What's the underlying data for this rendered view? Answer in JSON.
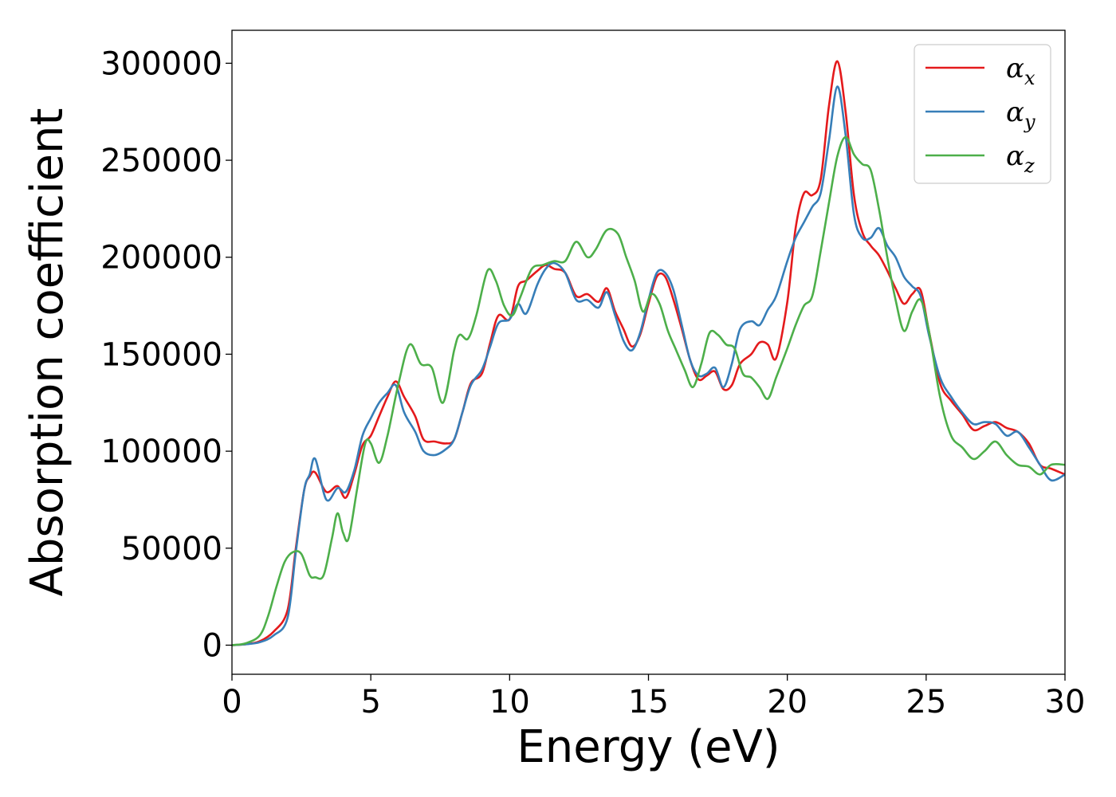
{
  "chart_data": {
    "type": "line",
    "title": "",
    "xlabel": "Energy (eV)",
    "ylabel": "Absorption coefficient",
    "xlim": [
      0,
      30
    ],
    "ylim": [
      -15000,
      317000
    ],
    "xticks": [
      0,
      5,
      10,
      15,
      20,
      25,
      30
    ],
    "yticks": [
      0,
      50000,
      100000,
      150000,
      200000,
      250000,
      300000
    ],
    "grid": false,
    "legend_position": "top-right",
    "series": [
      {
        "name": "α_x",
        "legend_base": "α",
        "legend_sub": "x",
        "color": "#e41a1c",
        "points": [
          [
            0,
            0
          ],
          [
            0.5,
            500
          ],
          [
            1.0,
            2000
          ],
          [
            1.5,
            7000
          ],
          [
            2.0,
            18000
          ],
          [
            2.3,
            50000
          ],
          [
            2.6,
            80000
          ],
          [
            2.8,
            87000
          ],
          [
            3.0,
            89000
          ],
          [
            3.4,
            79000
          ],
          [
            3.8,
            82000
          ],
          [
            4.1,
            76000
          ],
          [
            4.4,
            88000
          ],
          [
            4.7,
            103000
          ],
          [
            5.0,
            108000
          ],
          [
            5.3,
            118000
          ],
          [
            5.6,
            128000
          ],
          [
            5.9,
            136000
          ],
          [
            6.2,
            128000
          ],
          [
            6.6,
            118000
          ],
          [
            6.9,
            106000
          ],
          [
            7.3,
            105000
          ],
          [
            7.7,
            104000
          ],
          [
            8.0,
            106000
          ],
          [
            8.3,
            120000
          ],
          [
            8.6,
            135000
          ],
          [
            9.0,
            140000
          ],
          [
            9.3,
            156000
          ],
          [
            9.6,
            170000
          ],
          [
            10.0,
            168000
          ],
          [
            10.3,
            185000
          ],
          [
            10.6,
            188000
          ],
          [
            11.0,
            193000
          ],
          [
            11.3,
            196000
          ],
          [
            11.6,
            194000
          ],
          [
            12.0,
            192000
          ],
          [
            12.4,
            180000
          ],
          [
            12.8,
            181000
          ],
          [
            13.2,
            177000
          ],
          [
            13.5,
            184000
          ],
          [
            13.8,
            172000
          ],
          [
            14.1,
            163000
          ],
          [
            14.4,
            154000
          ],
          [
            14.7,
            160000
          ],
          [
            15.0,
            176000
          ],
          [
            15.3,
            190000
          ],
          [
            15.6,
            190000
          ],
          [
            15.9,
            178000
          ],
          [
            16.2,
            163000
          ],
          [
            16.5,
            147000
          ],
          [
            16.8,
            137000
          ],
          [
            17.1,
            139000
          ],
          [
            17.4,
            141000
          ],
          [
            17.7,
            132000
          ],
          [
            18.0,
            134000
          ],
          [
            18.3,
            145000
          ],
          [
            18.7,
            150000
          ],
          [
            19.0,
            156000
          ],
          [
            19.3,
            155000
          ],
          [
            19.6,
            148000
          ],
          [
            20.0,
            177000
          ],
          [
            20.3,
            215000
          ],
          [
            20.6,
            233000
          ],
          [
            20.9,
            232000
          ],
          [
            21.2,
            240000
          ],
          [
            21.5,
            278000
          ],
          [
            21.8,
            301000
          ],
          [
            22.1,
            275000
          ],
          [
            22.4,
            232000
          ],
          [
            22.7,
            213000
          ],
          [
            23.0,
            206000
          ],
          [
            23.3,
            201000
          ],
          [
            23.6,
            193000
          ],
          [
            23.9,
            184000
          ],
          [
            24.2,
            176000
          ],
          [
            24.5,
            181000
          ],
          [
            24.8,
            183000
          ],
          [
            25.1,
            162000
          ],
          [
            25.5,
            135000
          ],
          [
            25.9,
            126000
          ],
          [
            26.3,
            119000
          ],
          [
            26.7,
            111000
          ],
          [
            27.1,
            113000
          ],
          [
            27.5,
            115000
          ],
          [
            27.9,
            112000
          ],
          [
            28.3,
            110000
          ],
          [
            28.7,
            104000
          ],
          [
            29.1,
            93000
          ],
          [
            29.5,
            91000
          ],
          [
            30.0,
            88000
          ]
        ]
      },
      {
        "name": "α_y",
        "legend_base": "α",
        "legend_sub": "y",
        "color": "#377eb8",
        "points": [
          [
            0,
            0
          ],
          [
            0.5,
            500
          ],
          [
            1.0,
            1500
          ],
          [
            1.5,
            5000
          ],
          [
            2.0,
            14000
          ],
          [
            2.3,
            48000
          ],
          [
            2.6,
            80000
          ],
          [
            2.8,
            88000
          ],
          [
            3.0,
            96000
          ],
          [
            3.4,
            75000
          ],
          [
            3.8,
            81000
          ],
          [
            4.1,
            79000
          ],
          [
            4.4,
            90000
          ],
          [
            4.7,
            108000
          ],
          [
            5.0,
            117000
          ],
          [
            5.3,
            125000
          ],
          [
            5.6,
            130000
          ],
          [
            5.9,
            134000
          ],
          [
            6.2,
            120000
          ],
          [
            6.6,
            110000
          ],
          [
            6.9,
            100000
          ],
          [
            7.3,
            98000
          ],
          [
            7.7,
            101000
          ],
          [
            8.0,
            106000
          ],
          [
            8.3,
            120000
          ],
          [
            8.6,
            134000
          ],
          [
            9.0,
            142000
          ],
          [
            9.3,
            154000
          ],
          [
            9.6,
            166000
          ],
          [
            10.0,
            168000
          ],
          [
            10.3,
            176000
          ],
          [
            10.6,
            171000
          ],
          [
            11.0,
            186000
          ],
          [
            11.3,
            194000
          ],
          [
            11.6,
            197000
          ],
          [
            12.0,
            192000
          ],
          [
            12.4,
            178000
          ],
          [
            12.8,
            178000
          ],
          [
            13.2,
            174000
          ],
          [
            13.5,
            182000
          ],
          [
            13.8,
            170000
          ],
          [
            14.1,
            157000
          ],
          [
            14.4,
            152000
          ],
          [
            14.7,
            161000
          ],
          [
            15.0,
            178000
          ],
          [
            15.3,
            192000
          ],
          [
            15.6,
            192000
          ],
          [
            15.9,
            183000
          ],
          [
            16.2,
            165000
          ],
          [
            16.5,
            147000
          ],
          [
            16.8,
            139000
          ],
          [
            17.1,
            140000
          ],
          [
            17.4,
            143000
          ],
          [
            17.7,
            133000
          ],
          [
            18.0,
            145000
          ],
          [
            18.3,
            163000
          ],
          [
            18.7,
            167000
          ],
          [
            19.0,
            165000
          ],
          [
            19.3,
            173000
          ],
          [
            19.6,
            180000
          ],
          [
            20.0,
            198000
          ],
          [
            20.3,
            210000
          ],
          [
            20.6,
            218000
          ],
          [
            20.9,
            226000
          ],
          [
            21.2,
            233000
          ],
          [
            21.5,
            260000
          ],
          [
            21.8,
            288000
          ],
          [
            22.1,
            263000
          ],
          [
            22.4,
            222000
          ],
          [
            22.7,
            210000
          ],
          [
            23.0,
            210000
          ],
          [
            23.3,
            215000
          ],
          [
            23.6,
            206000
          ],
          [
            23.9,
            200000
          ],
          [
            24.2,
            190000
          ],
          [
            24.5,
            185000
          ],
          [
            24.8,
            180000
          ],
          [
            25.1,
            160000
          ],
          [
            25.5,
            138000
          ],
          [
            25.9,
            128000
          ],
          [
            26.3,
            120000
          ],
          [
            26.7,
            114000
          ],
          [
            27.1,
            115000
          ],
          [
            27.5,
            114000
          ],
          [
            27.9,
            108000
          ],
          [
            28.3,
            110000
          ],
          [
            28.7,
            102000
          ],
          [
            29.1,
            93000
          ],
          [
            29.5,
            85000
          ],
          [
            30.0,
            88000
          ]
        ]
      },
      {
        "name": "α_z",
        "legend_base": "α",
        "legend_sub": "z",
        "color": "#4daf4a",
        "points": [
          [
            0,
            0
          ],
          [
            0.5,
            1000
          ],
          [
            1.0,
            5000
          ],
          [
            1.3,
            15000
          ],
          [
            1.6,
            30000
          ],
          [
            1.9,
            43000
          ],
          [
            2.2,
            48000
          ],
          [
            2.5,
            47000
          ],
          [
            2.8,
            36000
          ],
          [
            3.0,
            35000
          ],
          [
            3.3,
            36000
          ],
          [
            3.6,
            55000
          ],
          [
            3.8,
            68000
          ],
          [
            4.0,
            58000
          ],
          [
            4.2,
            55000
          ],
          [
            4.5,
            80000
          ],
          [
            4.8,
            104000
          ],
          [
            5.0,
            104000
          ],
          [
            5.3,
            94000
          ],
          [
            5.6,
            108000
          ],
          [
            6.0,
            135000
          ],
          [
            6.4,
            155000
          ],
          [
            6.8,
            145000
          ],
          [
            7.2,
            143000
          ],
          [
            7.6,
            125000
          ],
          [
            8.0,
            152000
          ],
          [
            8.2,
            160000
          ],
          [
            8.5,
            158000
          ],
          [
            8.8,
            170000
          ],
          [
            9.2,
            193000
          ],
          [
            9.5,
            188000
          ],
          [
            9.8,
            175000
          ],
          [
            10.1,
            170000
          ],
          [
            10.4,
            180000
          ],
          [
            10.8,
            194000
          ],
          [
            11.2,
            196000
          ],
          [
            11.6,
            198000
          ],
          [
            12.0,
            198000
          ],
          [
            12.4,
            208000
          ],
          [
            12.8,
            200000
          ],
          [
            13.1,
            204000
          ],
          [
            13.5,
            214000
          ],
          [
            13.9,
            212000
          ],
          [
            14.2,
            200000
          ],
          [
            14.5,
            188000
          ],
          [
            14.8,
            172000
          ],
          [
            15.1,
            181000
          ],
          [
            15.4,
            176000
          ],
          [
            15.7,
            162000
          ],
          [
            16.0,
            152000
          ],
          [
            16.3,
            142000
          ],
          [
            16.6,
            133000
          ],
          [
            16.9,
            145000
          ],
          [
            17.2,
            161000
          ],
          [
            17.5,
            160000
          ],
          [
            17.8,
            155000
          ],
          [
            18.1,
            153000
          ],
          [
            18.4,
            140000
          ],
          [
            18.7,
            138000
          ],
          [
            19.0,
            133000
          ],
          [
            19.3,
            127000
          ],
          [
            19.6,
            138000
          ],
          [
            20.0,
            153000
          ],
          [
            20.3,
            165000
          ],
          [
            20.6,
            175000
          ],
          [
            20.9,
            180000
          ],
          [
            21.2,
            203000
          ],
          [
            21.5,
            228000
          ],
          [
            21.8,
            252000
          ],
          [
            22.1,
            262000
          ],
          [
            22.4,
            253000
          ],
          [
            22.7,
            248000
          ],
          [
            23.0,
            245000
          ],
          [
            23.3,
            225000
          ],
          [
            23.6,
            200000
          ],
          [
            23.9,
            178000
          ],
          [
            24.2,
            162000
          ],
          [
            24.5,
            172000
          ],
          [
            24.8,
            178000
          ],
          [
            25.1,
            162000
          ],
          [
            25.5,
            128000
          ],
          [
            25.9,
            108000
          ],
          [
            26.3,
            102000
          ],
          [
            26.7,
            96000
          ],
          [
            27.1,
            100000
          ],
          [
            27.5,
            105000
          ],
          [
            27.9,
            98000
          ],
          [
            28.3,
            93000
          ],
          [
            28.7,
            92000
          ],
          [
            29.1,
            88000
          ],
          [
            29.5,
            93000
          ],
          [
            30.0,
            93000
          ]
        ]
      }
    ]
  }
}
